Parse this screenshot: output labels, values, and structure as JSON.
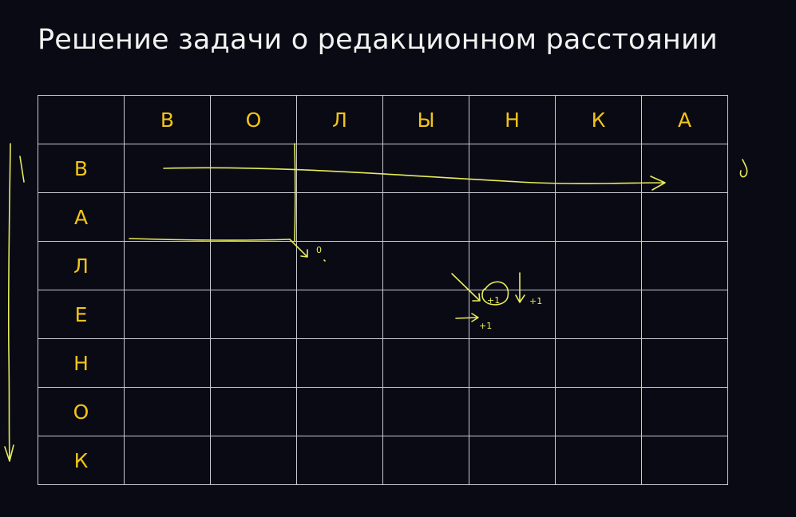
{
  "slide": {
    "title": "Решение задачи о редакционном расстоянии"
  },
  "grid": {
    "column_letters": [
      "В",
      "О",
      "Л",
      "Ы",
      "Н",
      "К",
      "А"
    ],
    "row_letters": [
      "В",
      "А",
      "Л",
      "Е",
      "Н",
      "О",
      "К"
    ]
  },
  "annotations": {
    "zero": "0",
    "plus_one": "+1",
    "plus_one_down": "+1",
    "plus_one_right": "+1"
  }
}
